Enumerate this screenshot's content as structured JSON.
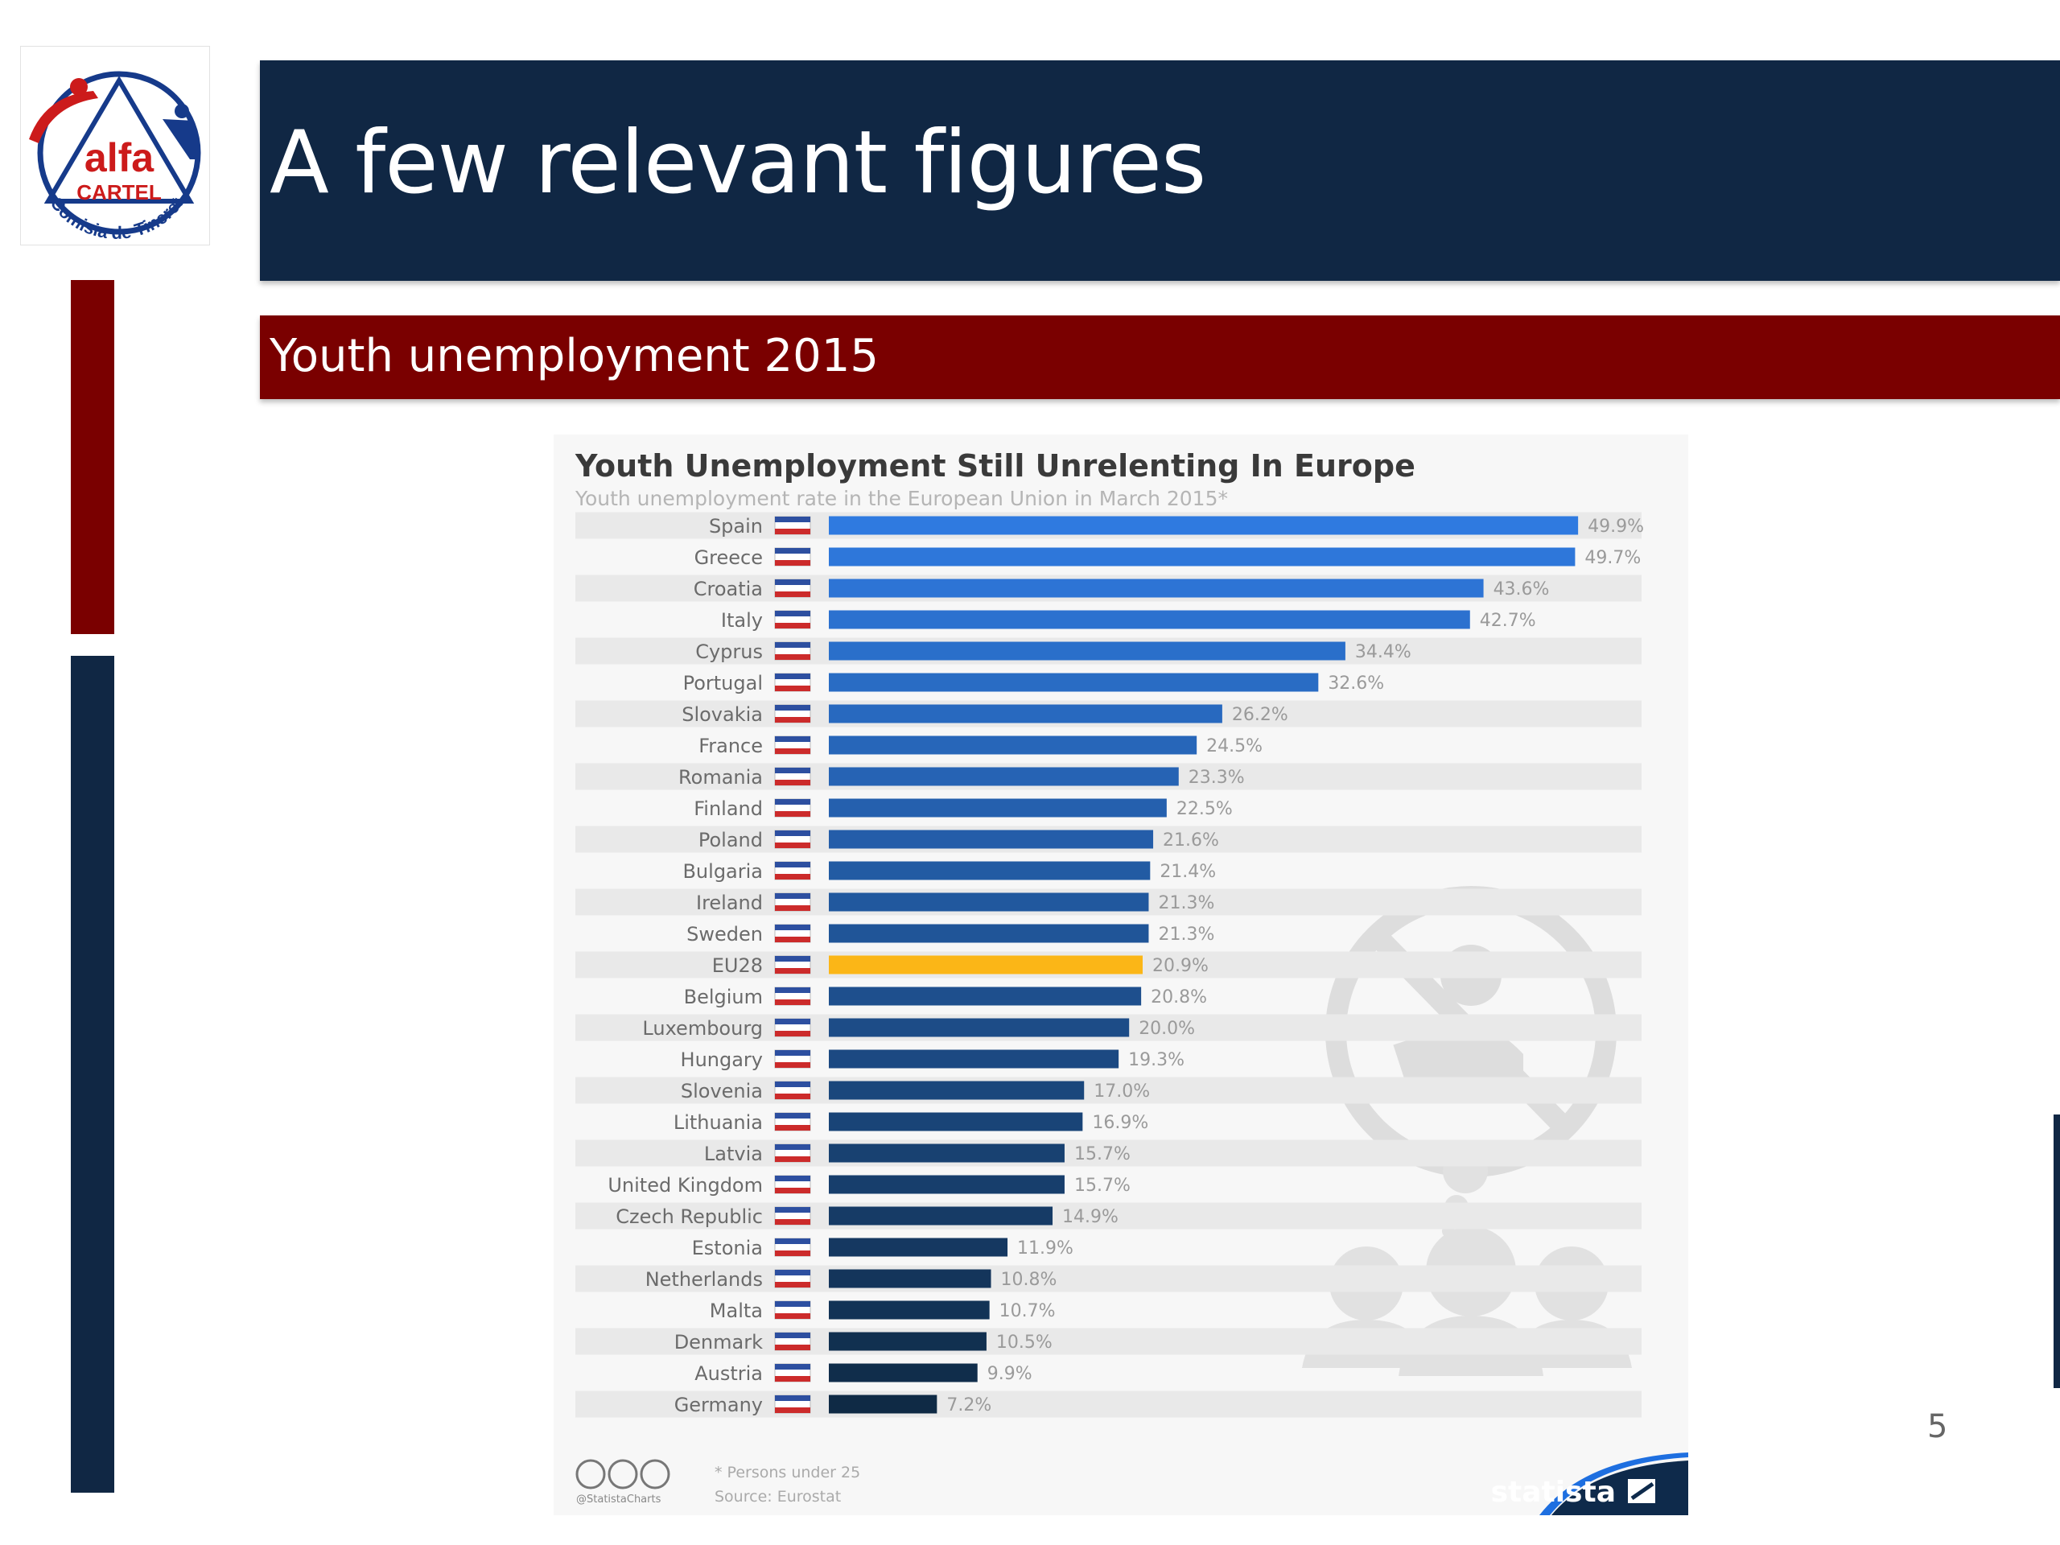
{
  "slide": {
    "title": "A few relevant figures",
    "subtitle": "Youth unemployment 2015",
    "page_number": "5"
  },
  "logo": {
    "main": "alfa",
    "sub": "CARTEL",
    "arc": "Comisia de Tineret"
  },
  "colors": {
    "navy": "#102744",
    "dark_red": "#7a0000",
    "eu_highlight": "#fbb617",
    "bar_top": "#2f7ae0",
    "bar_bottom": "#0f2a45"
  },
  "chart_data": {
    "type": "bar",
    "orientation": "horizontal",
    "title": "Youth Unemployment Still Unrelenting In Europe",
    "subtitle": "Youth unemployment rate in the European Union in March 2015*",
    "categories": [
      "Spain",
      "Greece",
      "Croatia",
      "Italy",
      "Cyprus",
      "Portugal",
      "Slovakia",
      "France",
      "Romania",
      "Finland",
      "Poland",
      "Bulgaria",
      "Ireland",
      "Sweden",
      "EU28",
      "Belgium",
      "Luxembourg",
      "Hungary",
      "Slovenia",
      "Lithuania",
      "Latvia",
      "United Kingdom",
      "Czech Republic",
      "Estonia",
      "Netherlands",
      "Malta",
      "Denmark",
      "Austria",
      "Germany"
    ],
    "values": [
      49.9,
      49.7,
      43.6,
      42.7,
      34.4,
      32.6,
      26.2,
      24.5,
      23.3,
      22.5,
      21.6,
      21.4,
      21.3,
      21.3,
      20.9,
      20.8,
      20.0,
      19.3,
      17.0,
      16.9,
      15.7,
      15.7,
      14.9,
      11.9,
      10.8,
      10.7,
      10.5,
      9.9,
      7.2
    ],
    "labels": [
      "49.9%",
      "49.7%",
      "43.6%",
      "42.7%",
      "34.4%",
      "32.6%",
      "26.2%",
      "24.5%",
      "23.3%",
      "22.5%",
      "21.6%",
      "21.4%",
      "21.3%",
      "21.3%",
      "20.9%",
      "20.8%",
      "20.0%",
      "19.3%",
      "17.0%",
      "16.9%",
      "15.7%",
      "15.7%",
      "14.9%",
      "11.9%",
      "10.8%",
      "10.7%",
      "10.5%",
      "9.9%",
      "7.2%"
    ],
    "highlight": "EU28",
    "xlim": [
      0,
      50
    ],
    "grid": false,
    "footnote": "* Persons under 25",
    "source": "Source: Eurostat",
    "handle": "@StatistaCharts",
    "brand": "statista"
  }
}
